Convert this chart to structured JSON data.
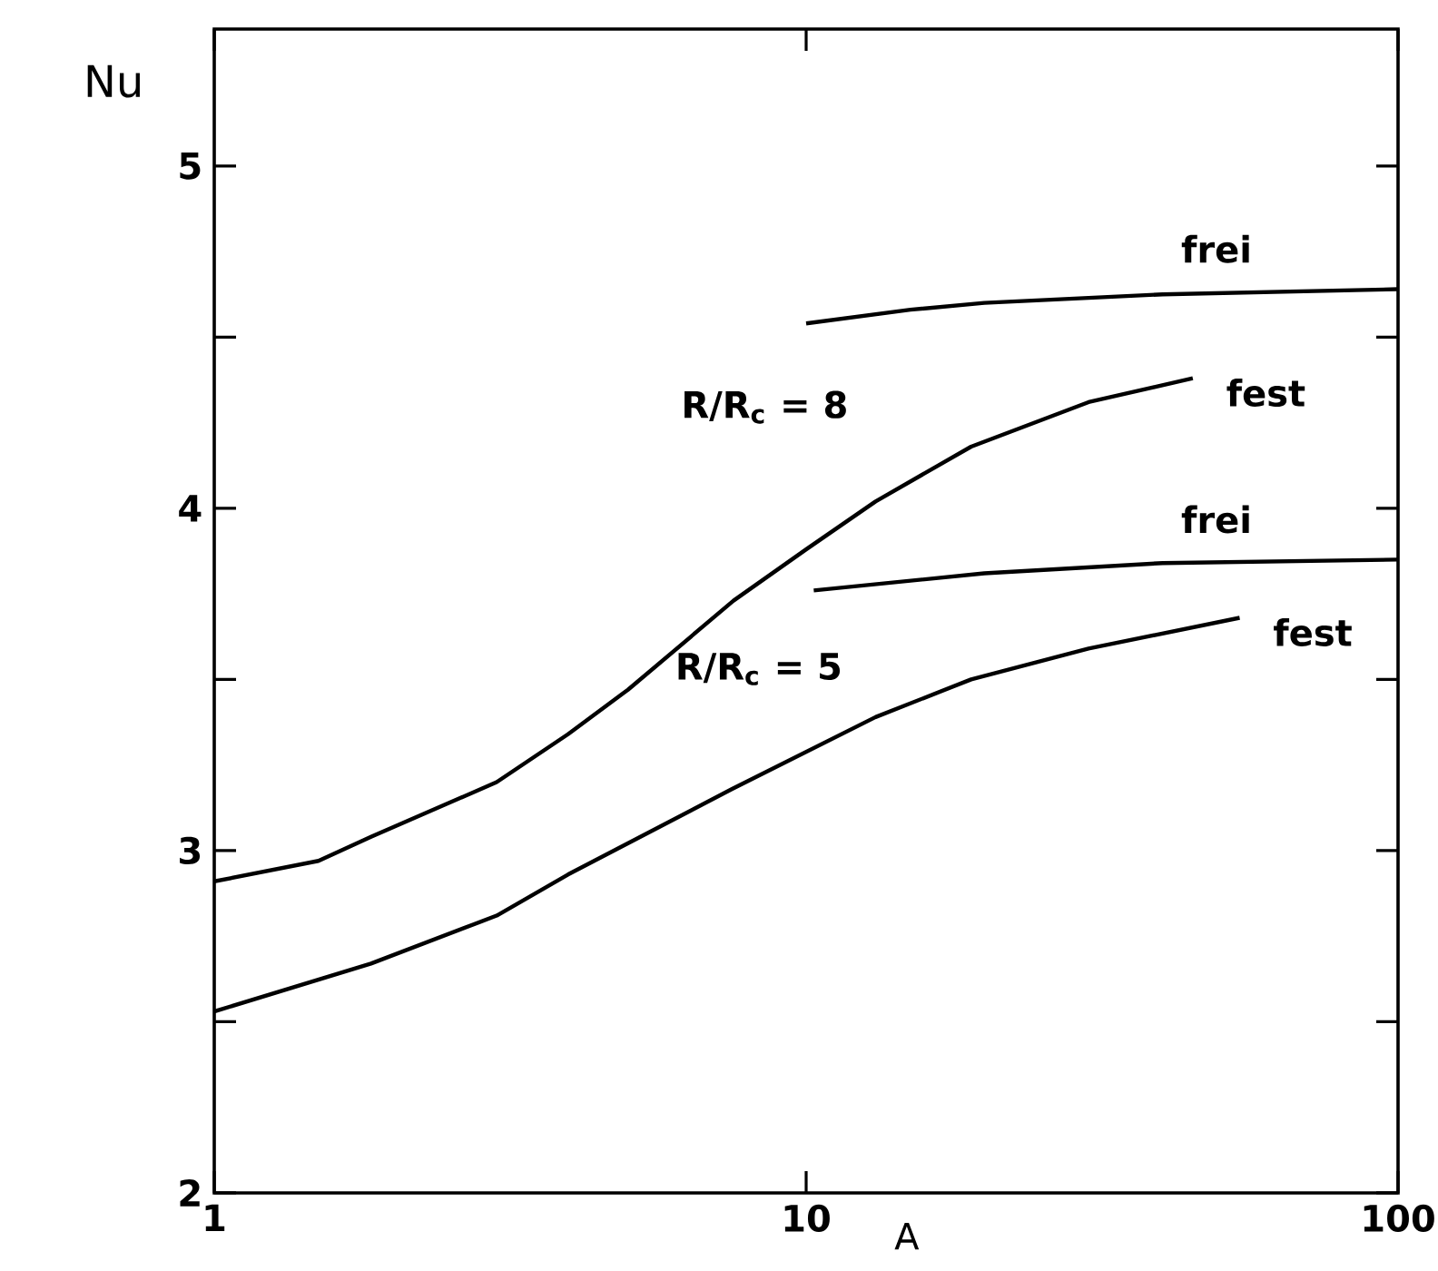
{
  "chart_data": {
    "type": "line",
    "xlabel": "A",
    "ylabel": "Nu",
    "log": "x",
    "xlim": [
      1,
      100
    ],
    "ylim": [
      2,
      5.4
    ],
    "xticks": [
      1,
      10,
      100
    ],
    "yticks": [
      2,
      {
        "value": 2.5,
        "label": null
      },
      3,
      {
        "value": 3.5,
        "label": null
      },
      4,
      {
        "value": 4.5,
        "label": null
      },
      5
    ],
    "series": [
      {
        "name": "frei",
        "color": "#000000",
        "x": [
          10,
          15,
          20,
          40,
          100
        ],
        "values": [
          4.54,
          4.58,
          4.6,
          4.625,
          4.64
        ]
      },
      {
        "name": "fest",
        "color": "#000000",
        "x": [
          1,
          1.5,
          1.84,
          3,
          3.96,
          5,
          7.54,
          10,
          13.1,
          19,
          30,
          45
        ],
        "values": [
          2.91,
          2.97,
          3.04,
          3.2,
          3.34,
          3.47,
          3.73,
          3.88,
          4.02,
          4.18,
          4.31,
          4.38
        ]
      },
      {
        "name": "frei",
        "color": "#000000",
        "x": [
          10.3,
          20,
          40,
          100
        ],
        "values": [
          3.76,
          3.81,
          3.84,
          3.85
        ]
      },
      {
        "name": "fest",
        "color": "#000000",
        "x": [
          1,
          1.84,
          3,
          3.96,
          7.5,
          13.1,
          19,
          30,
          54
        ],
        "values": [
          2.53,
          2.67,
          2.81,
          2.93,
          3.18,
          3.39,
          3.5,
          3.59,
          3.68
        ]
      }
    ],
    "annotations": [
      "R/R$_{c}$ = 8",
      "R/R$_{c}$ = 5"
    ]
  }
}
